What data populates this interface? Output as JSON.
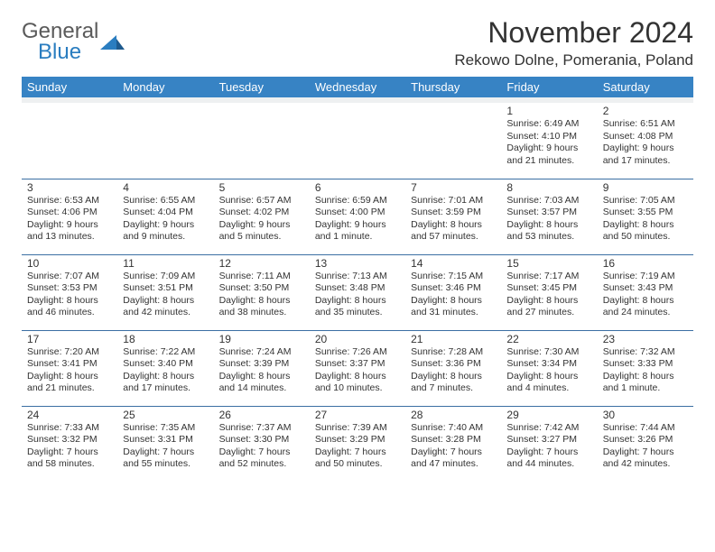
{
  "logo": {
    "textTop": "General",
    "textBottom": "Blue"
  },
  "title": "November 2024",
  "location": "Rekowo Dolne, Pomerania, Poland",
  "dayNames": [
    "Sunday",
    "Monday",
    "Tuesday",
    "Wednesday",
    "Thursday",
    "Friday",
    "Saturday"
  ],
  "colors": {
    "headerBg": "#3783c4",
    "headerText": "#ffffff",
    "border": "#3b6fa3",
    "spacer": "#eef0f1",
    "logoGray": "#5a5a5a",
    "logoBlue": "#2a7dc0",
    "bodyText": "#333333"
  },
  "weeks": [
    [
      {
        "day": "",
        "sunrise": "",
        "sunset": "",
        "daylight": ""
      },
      {
        "day": "",
        "sunrise": "",
        "sunset": "",
        "daylight": ""
      },
      {
        "day": "",
        "sunrise": "",
        "sunset": "",
        "daylight": ""
      },
      {
        "day": "",
        "sunrise": "",
        "sunset": "",
        "daylight": ""
      },
      {
        "day": "",
        "sunrise": "",
        "sunset": "",
        "daylight": ""
      },
      {
        "day": "1",
        "sunrise": "Sunrise: 6:49 AM",
        "sunset": "Sunset: 4:10 PM",
        "daylight": "Daylight: 9 hours and 21 minutes."
      },
      {
        "day": "2",
        "sunrise": "Sunrise: 6:51 AM",
        "sunset": "Sunset: 4:08 PM",
        "daylight": "Daylight: 9 hours and 17 minutes."
      }
    ],
    [
      {
        "day": "3",
        "sunrise": "Sunrise: 6:53 AM",
        "sunset": "Sunset: 4:06 PM",
        "daylight": "Daylight: 9 hours and 13 minutes."
      },
      {
        "day": "4",
        "sunrise": "Sunrise: 6:55 AM",
        "sunset": "Sunset: 4:04 PM",
        "daylight": "Daylight: 9 hours and 9 minutes."
      },
      {
        "day": "5",
        "sunrise": "Sunrise: 6:57 AM",
        "sunset": "Sunset: 4:02 PM",
        "daylight": "Daylight: 9 hours and 5 minutes."
      },
      {
        "day": "6",
        "sunrise": "Sunrise: 6:59 AM",
        "sunset": "Sunset: 4:00 PM",
        "daylight": "Daylight: 9 hours and 1 minute."
      },
      {
        "day": "7",
        "sunrise": "Sunrise: 7:01 AM",
        "sunset": "Sunset: 3:59 PM",
        "daylight": "Daylight: 8 hours and 57 minutes."
      },
      {
        "day": "8",
        "sunrise": "Sunrise: 7:03 AM",
        "sunset": "Sunset: 3:57 PM",
        "daylight": "Daylight: 8 hours and 53 minutes."
      },
      {
        "day": "9",
        "sunrise": "Sunrise: 7:05 AM",
        "sunset": "Sunset: 3:55 PM",
        "daylight": "Daylight: 8 hours and 50 minutes."
      }
    ],
    [
      {
        "day": "10",
        "sunrise": "Sunrise: 7:07 AM",
        "sunset": "Sunset: 3:53 PM",
        "daylight": "Daylight: 8 hours and 46 minutes."
      },
      {
        "day": "11",
        "sunrise": "Sunrise: 7:09 AM",
        "sunset": "Sunset: 3:51 PM",
        "daylight": "Daylight: 8 hours and 42 minutes."
      },
      {
        "day": "12",
        "sunrise": "Sunrise: 7:11 AM",
        "sunset": "Sunset: 3:50 PM",
        "daylight": "Daylight: 8 hours and 38 minutes."
      },
      {
        "day": "13",
        "sunrise": "Sunrise: 7:13 AM",
        "sunset": "Sunset: 3:48 PM",
        "daylight": "Daylight: 8 hours and 35 minutes."
      },
      {
        "day": "14",
        "sunrise": "Sunrise: 7:15 AM",
        "sunset": "Sunset: 3:46 PM",
        "daylight": "Daylight: 8 hours and 31 minutes."
      },
      {
        "day": "15",
        "sunrise": "Sunrise: 7:17 AM",
        "sunset": "Sunset: 3:45 PM",
        "daylight": "Daylight: 8 hours and 27 minutes."
      },
      {
        "day": "16",
        "sunrise": "Sunrise: 7:19 AM",
        "sunset": "Sunset: 3:43 PM",
        "daylight": "Daylight: 8 hours and 24 minutes."
      }
    ],
    [
      {
        "day": "17",
        "sunrise": "Sunrise: 7:20 AM",
        "sunset": "Sunset: 3:41 PM",
        "daylight": "Daylight: 8 hours and 21 minutes."
      },
      {
        "day": "18",
        "sunrise": "Sunrise: 7:22 AM",
        "sunset": "Sunset: 3:40 PM",
        "daylight": "Daylight: 8 hours and 17 minutes."
      },
      {
        "day": "19",
        "sunrise": "Sunrise: 7:24 AM",
        "sunset": "Sunset: 3:39 PM",
        "daylight": "Daylight: 8 hours and 14 minutes."
      },
      {
        "day": "20",
        "sunrise": "Sunrise: 7:26 AM",
        "sunset": "Sunset: 3:37 PM",
        "daylight": "Daylight: 8 hours and 10 minutes."
      },
      {
        "day": "21",
        "sunrise": "Sunrise: 7:28 AM",
        "sunset": "Sunset: 3:36 PM",
        "daylight": "Daylight: 8 hours and 7 minutes."
      },
      {
        "day": "22",
        "sunrise": "Sunrise: 7:30 AM",
        "sunset": "Sunset: 3:34 PM",
        "daylight": "Daylight: 8 hours and 4 minutes."
      },
      {
        "day": "23",
        "sunrise": "Sunrise: 7:32 AM",
        "sunset": "Sunset: 3:33 PM",
        "daylight": "Daylight: 8 hours and 1 minute."
      }
    ],
    [
      {
        "day": "24",
        "sunrise": "Sunrise: 7:33 AM",
        "sunset": "Sunset: 3:32 PM",
        "daylight": "Daylight: 7 hours and 58 minutes."
      },
      {
        "day": "25",
        "sunrise": "Sunrise: 7:35 AM",
        "sunset": "Sunset: 3:31 PM",
        "daylight": "Daylight: 7 hours and 55 minutes."
      },
      {
        "day": "26",
        "sunrise": "Sunrise: 7:37 AM",
        "sunset": "Sunset: 3:30 PM",
        "daylight": "Daylight: 7 hours and 52 minutes."
      },
      {
        "day": "27",
        "sunrise": "Sunrise: 7:39 AM",
        "sunset": "Sunset: 3:29 PM",
        "daylight": "Daylight: 7 hours and 50 minutes."
      },
      {
        "day": "28",
        "sunrise": "Sunrise: 7:40 AM",
        "sunset": "Sunset: 3:28 PM",
        "daylight": "Daylight: 7 hours and 47 minutes."
      },
      {
        "day": "29",
        "sunrise": "Sunrise: 7:42 AM",
        "sunset": "Sunset: 3:27 PM",
        "daylight": "Daylight: 7 hours and 44 minutes."
      },
      {
        "day": "30",
        "sunrise": "Sunrise: 7:44 AM",
        "sunset": "Sunset: 3:26 PM",
        "daylight": "Daylight: 7 hours and 42 minutes."
      }
    ]
  ]
}
